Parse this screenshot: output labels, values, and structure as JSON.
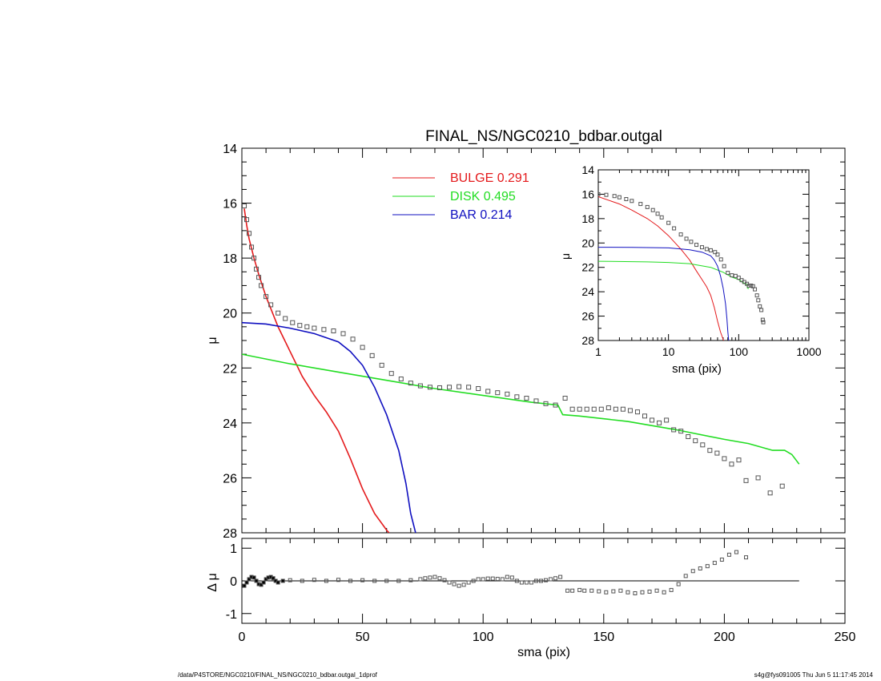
{
  "chart_data": [
    {
      "type": "line",
      "title": "FINAL_NS/NGC0210_bdbar.outgal",
      "xlabel": "",
      "ylabel": "μ",
      "xlim": [
        0,
        250
      ],
      "ylim": [
        28,
        14
      ],
      "y_inverted": true,
      "xticks": [
        0,
        50,
        100,
        150,
        200,
        250
      ],
      "yticks": [
        14,
        16,
        18,
        20,
        22,
        24,
        26,
        28
      ],
      "legend_placement": "top-center",
      "legend": [
        {
          "name": "BULGE",
          "value": "0.291",
          "color": "#e41a1c"
        },
        {
          "name": "DISK",
          "value": "0.495",
          "color": "#22dd22"
        },
        {
          "name": "BAR",
          "value": "0.214",
          "color": "#1010c0"
        }
      ],
      "series": [
        {
          "name": "BULGE",
          "color": "#e41a1c",
          "x": [
            1,
            2,
            3,
            5,
            7,
            10,
            15,
            20,
            25,
            30,
            35,
            40,
            45,
            50,
            55,
            60,
            61
          ],
          "y": [
            16.2,
            16.8,
            17.3,
            18.0,
            18.6,
            19.4,
            20.5,
            21.4,
            22.3,
            23.0,
            23.6,
            24.3,
            25.3,
            26.4,
            27.3,
            27.9,
            28.0
          ]
        },
        {
          "name": "DISK",
          "color": "#22dd22",
          "x": [
            0,
            20,
            40,
            60,
            80,
            100,
            120,
            131,
            133,
            140,
            160,
            180,
            200,
            210,
            220,
            225,
            228,
            231
          ],
          "y": [
            21.5,
            21.85,
            22.15,
            22.45,
            22.75,
            23.0,
            23.25,
            23.35,
            23.7,
            23.75,
            23.95,
            24.25,
            24.6,
            24.75,
            25.0,
            25.0,
            25.15,
            25.5
          ]
        },
        {
          "name": "BAR",
          "color": "#1010c0",
          "x": [
            0,
            10,
            20,
            30,
            40,
            45,
            50,
            55,
            60,
            65,
            68,
            70,
            72
          ],
          "y": [
            20.35,
            20.4,
            20.55,
            20.75,
            21.05,
            21.4,
            21.9,
            22.7,
            23.7,
            25.0,
            26.2,
            27.3,
            28.0
          ]
        },
        {
          "name": "observed",
          "color": "#555555",
          "marker": "square",
          "x": [
            1,
            2,
            3,
            4,
            5,
            6,
            7,
            8,
            10,
            12,
            15,
            18,
            21,
            24,
            27,
            30,
            34,
            38,
            42,
            46,
            50,
            54,
            58,
            62,
            66,
            70,
            74,
            78,
            82,
            86,
            90,
            94,
            98,
            102,
            106,
            110,
            114,
            118,
            122,
            126,
            130,
            134,
            137,
            140,
            143,
            146,
            149,
            152,
            155,
            158,
            161,
            164,
            167,
            170,
            173,
            176,
            179,
            182,
            185,
            188,
            191,
            194,
            197,
            200,
            203,
            206,
            209,
            214,
            219,
            224
          ],
          "y": [
            16.1,
            16.6,
            17.1,
            17.6,
            18.0,
            18.4,
            18.7,
            19.0,
            19.4,
            19.7,
            20.0,
            20.2,
            20.35,
            20.45,
            20.5,
            20.55,
            20.6,
            20.65,
            20.75,
            20.95,
            21.25,
            21.55,
            21.9,
            22.2,
            22.4,
            22.55,
            22.65,
            22.7,
            22.72,
            22.7,
            22.68,
            22.7,
            22.75,
            22.85,
            22.9,
            22.95,
            23.05,
            23.1,
            23.2,
            23.3,
            23.35,
            23.1,
            23.5,
            23.5,
            23.5,
            23.5,
            23.5,
            23.45,
            23.5,
            23.5,
            23.55,
            23.6,
            23.75,
            23.9,
            24.0,
            23.9,
            24.25,
            24.3,
            24.5,
            24.65,
            24.8,
            25.0,
            25.1,
            25.3,
            25.5,
            25.35,
            26.1,
            26.0,
            26.55,
            26.3
          ]
        }
      ]
    },
    {
      "type": "line",
      "title": "",
      "xlabel": "sma (pix)",
      "ylabel": "μ",
      "x_scale": "log",
      "xlim": [
        1,
        1000
      ],
      "ylim": [
        28,
        14
      ],
      "y_inverted": true,
      "xticks": [
        "1",
        "10",
        "100",
        "1000"
      ],
      "yticks": [
        14,
        16,
        18,
        20,
        22,
        24,
        26,
        28
      ],
      "legend_placement": "none",
      "series": [
        {
          "name": "BULGE",
          "color": "#e41a1c",
          "x": [
            1,
            2,
            3,
            5,
            7,
            10,
            15,
            20,
            25,
            30,
            35,
            40,
            45,
            50,
            55,
            60,
            61
          ],
          "y": [
            16.2,
            16.8,
            17.3,
            18.0,
            18.6,
            19.4,
            20.5,
            21.4,
            22.3,
            23.0,
            23.6,
            24.3,
            25.3,
            26.4,
            27.3,
            27.9,
            28.0
          ]
        },
        {
          "name": "DISK",
          "color": "#22dd22",
          "x": [
            1,
            5,
            10,
            20,
            40,
            60,
            80,
            100,
            120,
            131,
            133,
            140
          ],
          "y": [
            21.5,
            21.55,
            21.6,
            21.7,
            22.0,
            22.4,
            22.8,
            23.0,
            23.3,
            23.4,
            23.7,
            23.75
          ]
        },
        {
          "name": "BAR",
          "color": "#1010c0",
          "x": [
            1,
            3,
            10,
            20,
            30,
            40,
            45,
            50,
            55,
            60,
            65,
            68,
            70,
            72
          ],
          "y": [
            20.35,
            20.36,
            20.4,
            20.55,
            20.75,
            21.05,
            21.4,
            21.9,
            22.7,
            23.7,
            25.0,
            26.2,
            27.3,
            28.0
          ]
        },
        {
          "name": "observed",
          "color": "#555555",
          "marker": "square",
          "x": [
            1,
            1.3,
            1.7,
            2,
            2.5,
            3,
            4,
            5,
            6,
            7,
            8,
            10,
            12,
            15,
            18,
            21,
            25,
            30,
            35,
            40,
            46,
            50,
            56,
            62,
            70,
            80,
            90,
            100,
            110,
            120,
            131,
            140,
            150,
            160,
            170,
            182,
            190,
            200,
            210,
            220,
            224
          ],
          "y": [
            16.0,
            16.05,
            16.15,
            16.25,
            16.4,
            16.55,
            16.8,
            17.05,
            17.3,
            17.6,
            17.9,
            18.35,
            18.8,
            19.3,
            19.65,
            19.9,
            20.15,
            20.35,
            20.5,
            20.6,
            20.75,
            20.95,
            21.35,
            21.9,
            22.45,
            22.65,
            22.7,
            22.85,
            23.05,
            23.2,
            23.35,
            23.5,
            23.5,
            23.55,
            23.8,
            24.3,
            24.7,
            25.2,
            25.5,
            26.3,
            26.5
          ]
        }
      ]
    },
    {
      "type": "scatter",
      "title": "",
      "xlabel": "sma (pix)",
      "ylabel": "Δ μ",
      "xlim": [
        0,
        250
      ],
      "ylim": [
        -1.3,
        1.3
      ],
      "xticks": [
        0,
        50,
        100,
        150,
        200,
        250
      ],
      "yticks": [
        -1,
        0,
        1
      ],
      "zero_line": [
        0,
        231
      ],
      "legend_placement": "none",
      "series": [
        {
          "name": "residual",
          "color": "#555555",
          "marker": "square",
          "x": [
            1,
            2,
            3,
            4,
            5,
            6,
            7,
            8,
            9,
            10,
            11,
            12,
            13,
            14,
            15,
            17,
            20,
            25,
            30,
            35,
            40,
            45,
            50,
            55,
            60,
            65,
            70,
            74,
            76,
            78,
            80,
            82,
            84,
            86,
            88,
            90,
            92,
            94,
            96,
            98,
            100,
            102,
            104,
            106,
            108,
            110,
            112,
            114,
            116,
            118,
            120,
            122,
            124,
            126,
            128,
            130,
            132,
            135,
            137,
            140,
            142,
            145,
            148,
            151,
            154,
            157,
            160,
            163,
            166,
            169,
            172,
            175,
            178,
            181,
            184,
            187,
            190,
            193,
            196,
            199,
            202,
            205,
            209
          ],
          "y": [
            -0.15,
            -0.05,
            0.05,
            0.12,
            0.1,
            0.0,
            -0.1,
            -0.12,
            -0.05,
            0.05,
            0.1,
            0.12,
            0.08,
            0.0,
            -0.05,
            0.0,
            0.02,
            0.0,
            0.03,
            0.0,
            0.03,
            0.0,
            0.02,
            0.0,
            0.0,
            0.0,
            0.02,
            0.05,
            0.08,
            0.1,
            0.12,
            0.08,
            0.02,
            -0.05,
            -0.1,
            -0.15,
            -0.12,
            -0.05,
            0.0,
            0.05,
            0.05,
            0.07,
            0.07,
            0.06,
            0.05,
            0.12,
            0.1,
            0.0,
            -0.05,
            -0.05,
            -0.05,
            0.0,
            0.0,
            0.02,
            0.05,
            0.08,
            0.12,
            -0.3,
            -0.3,
            -0.28,
            -0.3,
            -0.3,
            -0.32,
            -0.35,
            -0.32,
            -0.3,
            -0.35,
            -0.38,
            -0.35,
            -0.33,
            -0.3,
            -0.35,
            -0.28,
            -0.1,
            0.15,
            0.3,
            0.38,
            0.45,
            0.55,
            0.65,
            0.8,
            0.88,
            0.72
          ]
        }
      ]
    }
  ],
  "footer": {
    "left": "/data/P4STORE/NGC0210/FINAL_NS/NGC0210_bdbar.outgal_1dprof",
    "right": "s4g@fys091005  Thu Jun  5 11:17:45 2014"
  }
}
